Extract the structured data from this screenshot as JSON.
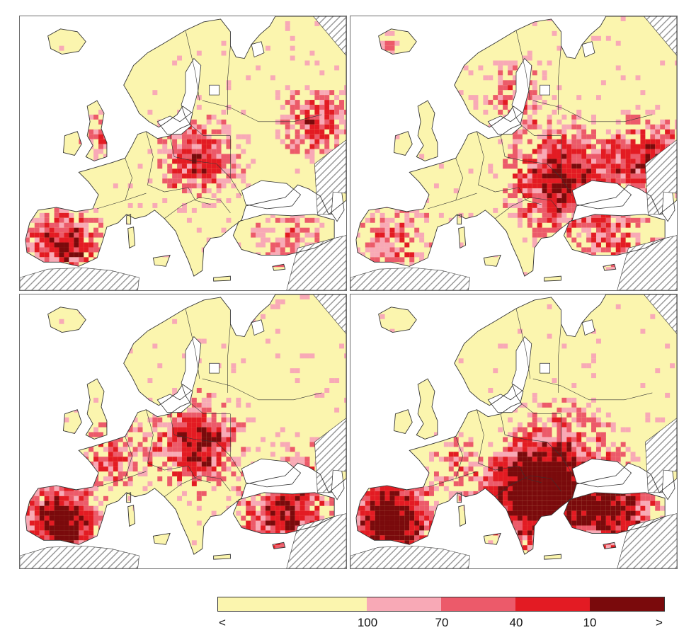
{
  "panels": [
    {
      "name": "map-panel-top-left",
      "scheme": "tl"
    },
    {
      "name": "map-panel-top-right",
      "scheme": "tr"
    },
    {
      "name": "map-panel-bottom-left",
      "scheme": "bl"
    },
    {
      "name": "map-panel-bottom-right",
      "scheme": "br"
    }
  ],
  "legend": {
    "classes": [
      {
        "color": "#fbf5ae",
        "label": "<"
      },
      {
        "color": "#f8a9b6",
        "label": "100"
      },
      {
        "color": "#ec5a6a",
        "label": "70"
      },
      {
        "color": "#e31b23",
        "label": "40"
      },
      {
        "color": "#7a0a0c",
        "label": "10"
      }
    ],
    "tick_labels": [
      "<",
      "100",
      "70",
      "40",
      "10",
      ">"
    ]
  },
  "colors": {
    "land": "#fbf5ae",
    "sea": "#ffffff",
    "outside_domain_hatch": "#9a9a9a",
    "coast": "#333333"
  }
}
